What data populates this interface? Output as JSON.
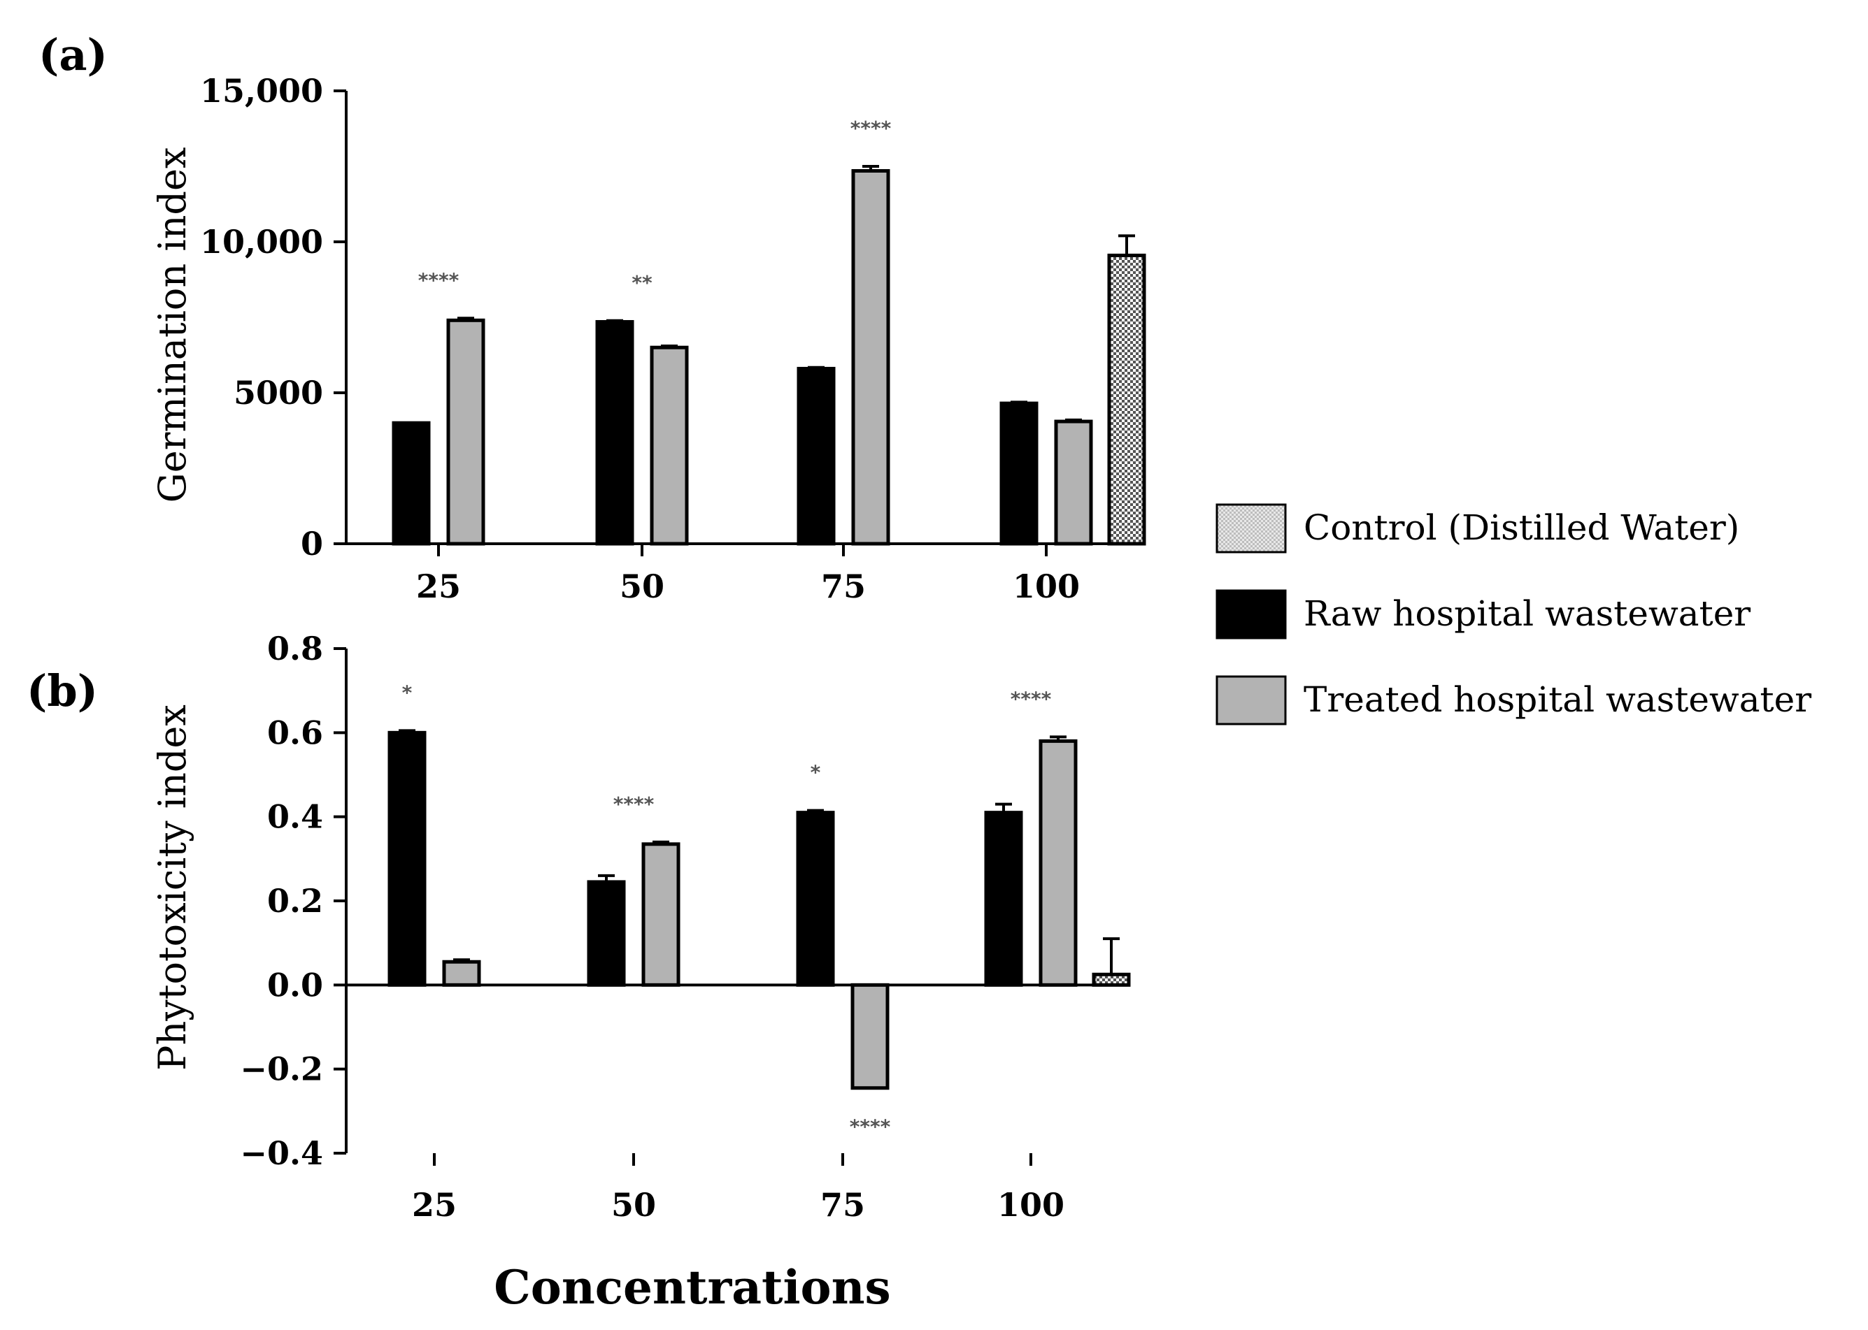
{
  "legend": [
    {
      "key": "control",
      "label": "Control (Distilled Water)",
      "fill": "pattern"
    },
    {
      "key": "raw",
      "label": "Raw hospital wastewater",
      "fill": "#000000"
    },
    {
      "key": "treated",
      "label": "Treated hospital wastewater",
      "fill": "#b3b3b3"
    }
  ],
  "xlabel": "Concentrations",
  "chart_data": [
    {
      "panel": "(a)",
      "type": "bar",
      "ylabel": "Germination index",
      "categories": [
        "25",
        "50",
        "75",
        "100"
      ],
      "ylim": [
        0,
        15000
      ],
      "yticks": [
        0,
        5000,
        10000,
        15000
      ],
      "ytick_labels": [
        "0",
        "5000",
        "10,000",
        "15,000"
      ],
      "series": [
        {
          "name": "Raw hospital wastewater",
          "key": "raw",
          "values": [
            4000,
            7350,
            5800,
            4650
          ],
          "errors": [
            0,
            40,
            40,
            40
          ]
        },
        {
          "name": "Treated hospital wastewater",
          "key": "treated",
          "values": [
            7400,
            6500,
            12350,
            4050
          ],
          "errors": [
            70,
            50,
            150,
            50
          ]
        },
        {
          "name": "Control (Distilled Water)",
          "key": "control",
          "values": [
            null,
            null,
            null,
            9550
          ],
          "errors": [
            null,
            null,
            null,
            650
          ]
        }
      ],
      "annotations": [
        {
          "category": "25",
          "text": "****"
        },
        {
          "category": "50",
          "text": "**"
        },
        {
          "category": "75",
          "text": "****"
        }
      ]
    },
    {
      "panel": "(b)",
      "type": "bar",
      "ylabel": "Phytotoxicity index",
      "categories": [
        "25",
        "50",
        "75",
        "100"
      ],
      "ylim": [
        -0.4,
        0.8
      ],
      "yticks": [
        -0.4,
        -0.2,
        0.0,
        0.2,
        0.4,
        0.6,
        0.8
      ],
      "ytick_labels": [
        "−0.4",
        "−0.2",
        "0.0",
        "0.2",
        "0.4",
        "0.6",
        "0.8"
      ],
      "series": [
        {
          "name": "Raw hospital wastewater",
          "key": "raw",
          "values": [
            0.6,
            0.245,
            0.41,
            0.41
          ],
          "errors": [
            0.005,
            0.015,
            0.005,
            0.02
          ]
        },
        {
          "name": "Treated hospital wastewater",
          "key": "treated",
          "values": [
            0.055,
            0.335,
            -0.245,
            0.58
          ],
          "errors": [
            0.005,
            0.005,
            0.0,
            0.01
          ]
        },
        {
          "name": "Control (Distilled Water)",
          "key": "control",
          "values": [
            null,
            null,
            null,
            0.025
          ],
          "errors": [
            null,
            null,
            null,
            0.085
          ]
        }
      ],
      "annotations": [
        {
          "category": "25",
          "text": "*",
          "anchor": "raw"
        },
        {
          "category": "50",
          "text": "****",
          "anchor": "group"
        },
        {
          "category": "75",
          "text": "*",
          "anchor": "raw"
        },
        {
          "category": "75",
          "text": "****",
          "anchor": "below"
        },
        {
          "category": "100",
          "text": "****",
          "anchor": "group"
        }
      ]
    }
  ]
}
